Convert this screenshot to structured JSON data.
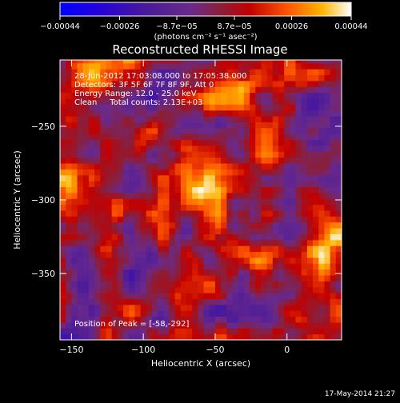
{
  "chart_data": {
    "type": "heatmap",
    "title": "Reconstructed RHESSI Image",
    "xlabel": "Heliocentric X (arcsec)",
    "ylabel": "Heliocentric Y (arcsec)",
    "xlim": [
      -158,
      38
    ],
    "ylim": [
      -395,
      -205
    ],
    "x_ticks": [
      -150,
      -100,
      -50,
      0
    ],
    "x_tick_labels": [
      "−150",
      "−100",
      "−50",
      "0"
    ],
    "y_ticks": [
      -250,
      -300,
      -350
    ],
    "y_tick_labels": [
      "−250",
      "−300",
      "−350"
    ],
    "colorbar": {
      "range": [
        -0.00044,
        0.00044
      ],
      "ticks": [
        -0.00044,
        -0.00026,
        -8.7e-05,
        8.7e-05,
        0.00026,
        0.00044
      ],
      "tick_labels": [
        "−0.00044",
        "−0.00026",
        "−8.7e−05",
        "8.7e−05",
        "0.00026",
        "0.00044"
      ],
      "unit_label": "(photons cm⁻² s⁻¹ asec⁻²)"
    },
    "annotations": [
      "28-Jun-2012 17:03:08.000 to 17:05:38.000",
      "Detectors: 3F 5F 6F 7F 8F 9F, Att 0",
      "Energy Range: 12.0 - 25.0 keV",
      "Clean     Total counts: 2.13E+03"
    ],
    "peak_label": "Position of Peak = [-58,-292]",
    "peak_position": [
      -58,
      -292
    ],
    "bright_sources": [
      {
        "x": -58,
        "y": -292,
        "value": 0.00044
      },
      {
        "x": -130,
        "y": -210,
        "value": 0.0004
      },
      {
        "x": -38,
        "y": -222,
        "value": 0.00038
      },
      {
        "x": 25,
        "y": -330,
        "value": 0.0004
      },
      {
        "x": -15,
        "y": -262,
        "value": 0.00032
      },
      {
        "x": -150,
        "y": -290,
        "value": 0.0003
      },
      {
        "x": -108,
        "y": -258,
        "value": 0.00026
      },
      {
        "x": -40,
        "y": -332,
        "value": 0.00028
      }
    ],
    "footer_timestamp": "17-May-2014 21:27"
  }
}
